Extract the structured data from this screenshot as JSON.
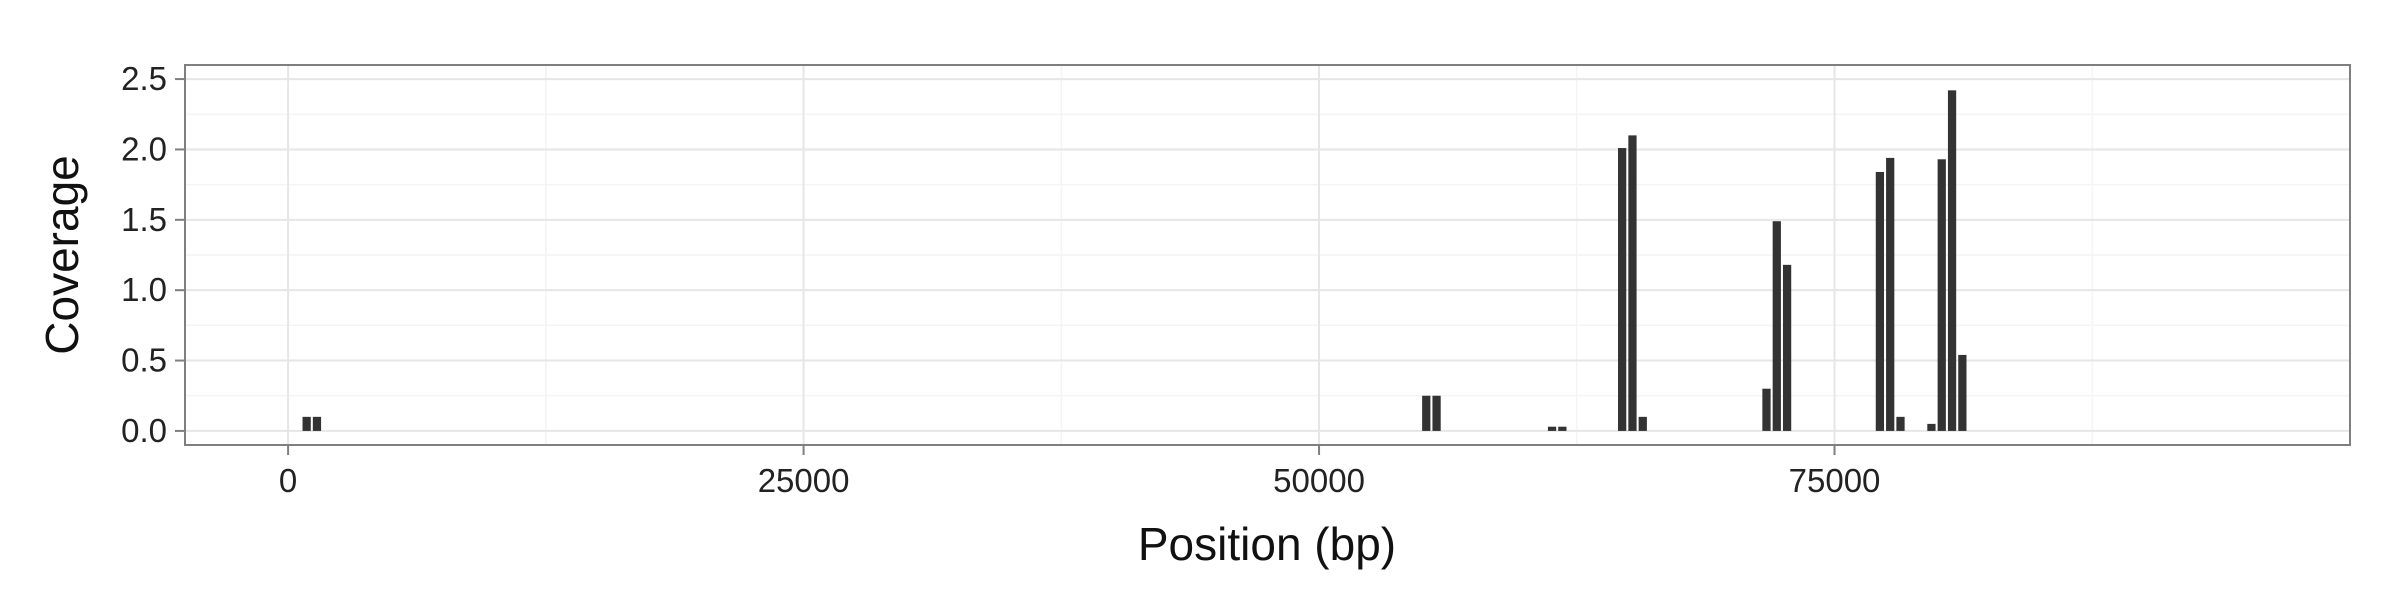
{
  "chart_data": {
    "type": "bar",
    "title": "",
    "xlabel": "Position (bp)",
    "ylabel": "Coverage",
    "xlim": [
      -5000,
      100000
    ],
    "ylim": [
      -0.1,
      2.6
    ],
    "x_ticks": [
      0,
      25000,
      50000,
      75000
    ],
    "x_tick_labels": [
      "0",
      "25000",
      "50000",
      "75000"
    ],
    "y_ticks": [
      0.0,
      0.5,
      1.0,
      1.5,
      2.0,
      2.5
    ],
    "y_tick_labels": [
      "0.0",
      "0.5",
      "1.0",
      "1.5",
      "2.0",
      "2.5"
    ],
    "grid": true,
    "bin_width": 400,
    "bar_color": "#333333",
    "background": "#ffffff",
    "grid_color": "#e6e6e6",
    "panel_border_color": "#7f7f7f",
    "bars": [
      {
        "x": 900,
        "value": 0.1
      },
      {
        "x": 1400,
        "value": 0.1
      },
      {
        "x": 55200,
        "value": 0.25
      },
      {
        "x": 55700,
        "value": 0.25
      },
      {
        "x": 61300,
        "value": 0.03
      },
      {
        "x": 61800,
        "value": 0.03
      },
      {
        "x": 64700,
        "value": 2.01
      },
      {
        "x": 65200,
        "value": 2.1
      },
      {
        "x": 65700,
        "value": 0.1
      },
      {
        "x": 71700,
        "value": 0.3
      },
      {
        "x": 72200,
        "value": 1.49
      },
      {
        "x": 72700,
        "value": 1.18
      },
      {
        "x": 77200,
        "value": 1.84
      },
      {
        "x": 77700,
        "value": 1.94
      },
      {
        "x": 78200,
        "value": 0.1
      },
      {
        "x": 79700,
        "value": 0.05
      },
      {
        "x": 80200,
        "value": 1.93
      },
      {
        "x": 80700,
        "value": 2.42
      },
      {
        "x": 81200,
        "value": 0.54
      }
    ]
  }
}
